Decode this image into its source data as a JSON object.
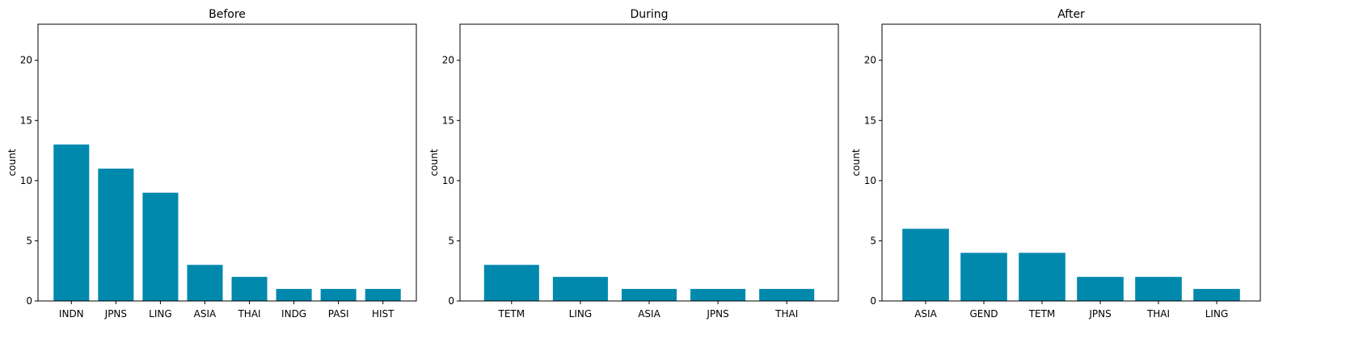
{
  "chart_data": [
    {
      "type": "bar",
      "title": "Before",
      "xlabel": "",
      "ylabel": "count",
      "ylim": [
        0,
        23
      ],
      "yticks": [
        0,
        5,
        10,
        15,
        20
      ],
      "categories": [
        "INDN",
        "JPNS",
        "LING",
        "ASIA",
        "THAI",
        "INDG",
        "PASI",
        "HIST"
      ],
      "values": [
        13,
        11,
        9,
        3,
        2,
        1,
        1,
        1
      ],
      "color": "#0088ad"
    },
    {
      "type": "bar",
      "title": "During",
      "xlabel": "",
      "ylabel": "count",
      "ylim": [
        0,
        23
      ],
      "yticks": [
        0,
        5,
        10,
        15,
        20
      ],
      "categories": [
        "TETM",
        "LING",
        "ASIA",
        "JPNS",
        "THAI"
      ],
      "values": [
        3,
        2,
        1,
        1,
        1
      ],
      "color": "#0088ad"
    },
    {
      "type": "bar",
      "title": "After",
      "xlabel": "",
      "ylabel": "count",
      "ylim": [
        0,
        23
      ],
      "yticks": [
        0,
        5,
        10,
        15,
        20
      ],
      "categories": [
        "ASIA",
        "GEND",
        "TETM",
        "JPNS",
        "THAI",
        "LING"
      ],
      "values": [
        6,
        4,
        4,
        2,
        2,
        1
      ],
      "color": "#0088ad"
    }
  ]
}
